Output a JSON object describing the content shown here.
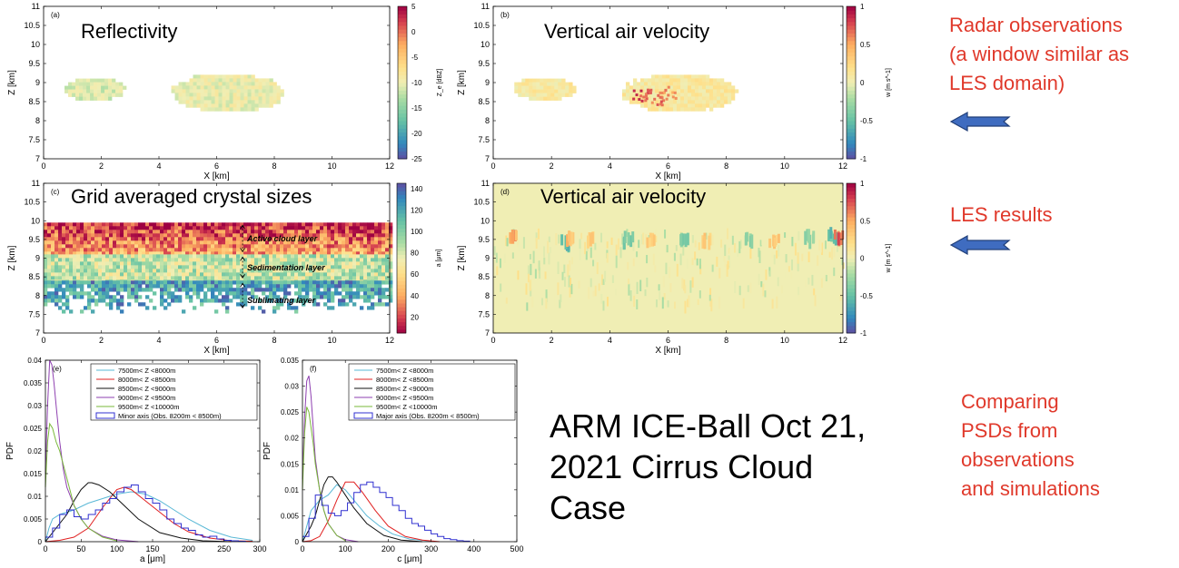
{
  "side_notes": {
    "radar": [
      "Radar observations",
      "(a window similar as",
      "LES domain)"
    ],
    "les": [
      "LES results"
    ],
    "psd": [
      "Comparing",
      "PSDs from",
      "observations",
      "and simulations"
    ]
  },
  "case_title": [
    "ARM ICE-Ball Oct 21,",
    "2021 Cirrus Cloud",
    "Case"
  ],
  "colors": {
    "note_red": "#e0392b",
    "arrow_blue": "#3f6cc0",
    "arrow_edge": "#213f78"
  },
  "icons": [
    "left-arrow-icon"
  ],
  "chart_data": [
    {
      "id": "a",
      "type": "heatmap",
      "panel_label": "(a)",
      "title": "Reflectivity",
      "xlabel": "X [km]",
      "ylabel": "Z [km]",
      "xlim": [
        0,
        12
      ],
      "ylim": [
        7,
        11
      ],
      "xticks": [
        0,
        2,
        4,
        6,
        8,
        10,
        12
      ],
      "yticks": [
        7,
        7.5,
        8,
        8.5,
        9,
        9.5,
        10,
        10.5,
        11
      ],
      "colorbar": {
        "label": "Z_e [dBZ]",
        "range": [
          -25,
          5
        ],
        "ticks": [
          -25,
          -20,
          -15,
          -10,
          -5,
          0,
          5
        ],
        "palette": "spectral"
      },
      "cloud_regions": [
        {
          "x_range": [
            0.6,
            2.8
          ],
          "z_range": [
            8.55,
            9.2
          ],
          "value": -11
        },
        {
          "x_range": [
            4.3,
            8.4
          ],
          "z_range": [
            8.25,
            9.3
          ],
          "value": -10
        }
      ]
    },
    {
      "id": "b",
      "type": "heatmap",
      "panel_label": "(b)",
      "title": "Vertical air velocity",
      "xlabel": "X [km]",
      "ylabel": "Z [km]",
      "xlim": [
        0,
        12
      ],
      "ylim": [
        7,
        11
      ],
      "xticks": [
        0,
        2,
        4,
        6,
        8,
        10,
        12
      ],
      "yticks": [
        7,
        7.5,
        8,
        8.5,
        9,
        9.5,
        10,
        10.5,
        11
      ],
      "colorbar": {
        "label": "w [m s^-1]",
        "range": [
          -1,
          1
        ],
        "ticks": [
          -1,
          -0.5,
          0,
          0.5,
          1
        ],
        "palette": "spectral"
      },
      "cloud_regions": [
        {
          "x_range": [
            0.6,
            2.8
          ],
          "z_range": [
            8.55,
            9.2
          ],
          "value": 0.1
        },
        {
          "x_range": [
            4.3,
            8.4
          ],
          "z_range": [
            8.25,
            9.3
          ],
          "value": 0.1
        }
      ],
      "hotspots": [
        {
          "x": 5.1,
          "z": 8.7,
          "value": 0.9
        },
        {
          "x": 5.5,
          "z": 8.6,
          "value": 0.8
        },
        {
          "x": 5.9,
          "z": 8.75,
          "value": 0.7
        }
      ]
    },
    {
      "id": "c",
      "type": "heatmap",
      "panel_label": "(c)",
      "title": "Grid averaged crystal sizes",
      "xlabel": "X [km]",
      "ylabel": "Z [km]",
      "xlim": [
        0,
        12
      ],
      "ylim": [
        7,
        11
      ],
      "xticks": [
        0,
        2,
        4,
        6,
        8,
        10,
        12
      ],
      "yticks": [
        7,
        7.5,
        8,
        8.5,
        9,
        9.5,
        10,
        10.5,
        11
      ],
      "colorbar": {
        "label": "a [μm]",
        "range": [
          5,
          145
        ],
        "ticks": [
          20,
          40,
          60,
          80,
          100,
          120,
          140
        ],
        "palette": "spectral_reversed"
      },
      "layers": [
        {
          "label": "Active cloud layer",
          "z_range": [
            9.1,
            9.95
          ],
          "value": 15
        },
        {
          "label": "Sedimentation layer",
          "z_range": [
            8.4,
            9.1
          ],
          "value": 85
        },
        {
          "label": "Sublimating layer",
          "z_range": [
            7.6,
            8.4
          ],
          "value": 120
        }
      ],
      "layer_marker_x": 6.9
    },
    {
      "id": "d",
      "type": "heatmap",
      "panel_label": "(d)",
      "title": "Vertical air velocity",
      "xlabel": "X [km]",
      "ylabel": "Z [km]",
      "xlim": [
        0,
        12
      ],
      "ylim": [
        7,
        11
      ],
      "xticks": [
        0,
        2,
        4,
        6,
        8,
        10,
        12
      ],
      "yticks": [
        7,
        7.5,
        8,
        8.5,
        9,
        9.5,
        10,
        10.5,
        11
      ],
      "colorbar": {
        "label": "w [m s^-1]",
        "range": [
          -1,
          1
        ],
        "ticks": [
          -1,
          -0.5,
          0,
          0.5,
          1
        ],
        "palette": "spectral"
      },
      "features": [
        {
          "x": 0.6,
          "z": 9.55,
          "value": 0.6
        },
        {
          "x": 2.4,
          "z": 9.45,
          "value": -0.8
        },
        {
          "x": 2.6,
          "z": 9.55,
          "value": 0.5
        },
        {
          "x": 3.3,
          "z": 9.5,
          "value": 0.4
        },
        {
          "x": 4.6,
          "z": 9.5,
          "value": -0.5
        },
        {
          "x": 5.4,
          "z": 9.5,
          "value": 0.4
        },
        {
          "x": 6.5,
          "z": 9.5,
          "value": -0.5
        },
        {
          "x": 7.3,
          "z": 9.45,
          "value": 0.4
        },
        {
          "x": 8.7,
          "z": 9.5,
          "value": -0.4
        },
        {
          "x": 9.6,
          "z": 9.45,
          "value": 0.4
        },
        {
          "x": 10.8,
          "z": 9.55,
          "value": -0.4
        },
        {
          "x": 11.6,
          "z": 9.6,
          "value": -0.6
        },
        {
          "x": 11.8,
          "z": 9.6,
          "value": 0.9
        }
      ]
    },
    {
      "id": "e",
      "type": "line",
      "panel_label": "(e)",
      "xlabel": "a [μm]",
      "ylabel": "PDF",
      "xlim": [
        0,
        300
      ],
      "ylim": [
        0,
        0.04
      ],
      "xticks": [
        0,
        50,
        100,
        150,
        200,
        250,
        300
      ],
      "yticks": [
        0,
        0.005,
        0.01,
        0.015,
        0.02,
        0.025,
        0.03,
        0.035,
        0.04
      ],
      "legend_position": "top-right",
      "series": [
        {
          "name": "7500m< Z <8000m",
          "color": "#5ab8d6",
          "x": [
            0,
            5,
            10,
            20,
            30,
            40,
            60,
            80,
            100,
            120,
            140,
            160,
            180,
            200,
            230,
            260,
            290
          ],
          "y": [
            0,
            0.003,
            0.005,
            0.006,
            0.0065,
            0.007,
            0.0085,
            0.0095,
            0.0105,
            0.011,
            0.0105,
            0.009,
            0.007,
            0.005,
            0.0025,
            0.001,
            0.0003
          ]
        },
        {
          "name": "8000m< Z <8500m",
          "color": "#e02020",
          "x": [
            0,
            20,
            40,
            60,
            80,
            100,
            110,
            120,
            140,
            160,
            180,
            200,
            230,
            260,
            290
          ],
          "y": [
            0,
            0.0003,
            0.001,
            0.003,
            0.0075,
            0.0115,
            0.012,
            0.0115,
            0.009,
            0.0065,
            0.004,
            0.0022,
            0.0008,
            0.0002,
            0.0001
          ]
        },
        {
          "name": "8500m< Z <9000m",
          "color": "#111111",
          "x": [
            0,
            5,
            10,
            20,
            30,
            40,
            50,
            60,
            65,
            75,
            90,
            110,
            130,
            160,
            190,
            220,
            260
          ],
          "y": [
            0,
            0.001,
            0.002,
            0.004,
            0.006,
            0.009,
            0.0115,
            0.013,
            0.013,
            0.0125,
            0.011,
            0.008,
            0.005,
            0.002,
            0.0008,
            0.0002,
            0
          ]
        },
        {
          "name": "9000m< Z <9500m",
          "color": "#8e3fb0",
          "x": [
            0,
            3,
            6,
            9,
            12,
            15,
            20,
            25,
            30,
            40,
            50,
            60,
            80,
            100,
            130
          ],
          "y": [
            0.015,
            0.03,
            0.04,
            0.039,
            0.035,
            0.03,
            0.022,
            0.016,
            0.012,
            0.008,
            0.005,
            0.003,
            0.0012,
            0.0004,
            0
          ]
        },
        {
          "name": "9500m< Z <10000m",
          "color": "#7ab83a",
          "x": [
            0,
            3,
            6,
            10,
            15,
            20,
            25,
            30,
            35,
            40,
            50,
            60,
            80,
            100
          ],
          "y": [
            0.012,
            0.022,
            0.026,
            0.025,
            0.022,
            0.02,
            0.017,
            0.014,
            0.011,
            0.008,
            0.005,
            0.003,
            0.001,
            0.0002
          ]
        },
        {
          "name": "Minor axis (Obs. 8200m < 8500m)",
          "color": "#3030d0",
          "step": true,
          "x": [
            0,
            10,
            20,
            30,
            40,
            50,
            60,
            70,
            80,
            90,
            100,
            110,
            120,
            130,
            140,
            150,
            160,
            170,
            180,
            190,
            200,
            210,
            220,
            230,
            240,
            250,
            260,
            270,
            280
          ],
          "y": [
            0.001,
            0.003,
            0.006,
            0.007,
            0.0055,
            0.005,
            0.006,
            0.007,
            0.0085,
            0.0095,
            0.011,
            0.012,
            0.0125,
            0.011,
            0.0095,
            0.0085,
            0.007,
            0.005,
            0.004,
            0.003,
            0.0025,
            0.0015,
            0.001,
            0.0012,
            0.0006,
            0.0003,
            0.0002,
            0.0001,
            0
          ]
        }
      ]
    },
    {
      "id": "f",
      "type": "line",
      "panel_label": "(f)",
      "xlabel": "c [μm]",
      "ylabel": "PDF",
      "xlim": [
        0,
        500
      ],
      "ylim": [
        0,
        0.035
      ],
      "xticks": [
        0,
        100,
        200,
        300,
        400,
        500
      ],
      "yticks": [
        0,
        0.005,
        0.01,
        0.015,
        0.02,
        0.025,
        0.03,
        0.035
      ],
      "legend_position": "top-right",
      "series": [
        {
          "name": "7500m< Z <8000m",
          "color": "#5ab8d6",
          "x": [
            0,
            10,
            20,
            30,
            40,
            60,
            80,
            100,
            120,
            150,
            180,
            210,
            250,
            300
          ],
          "y": [
            0,
            0.003,
            0.006,
            0.007,
            0.008,
            0.009,
            0.011,
            0.01,
            0.008,
            0.005,
            0.003,
            0.0015,
            0.0005,
            0.0001
          ]
        },
        {
          "name": "8000m< Z <8500m",
          "color": "#e02020",
          "x": [
            0,
            20,
            40,
            60,
            80,
            100,
            120,
            140,
            170,
            200,
            240,
            280,
            320
          ],
          "y": [
            0,
            0.0002,
            0.001,
            0.004,
            0.008,
            0.0115,
            0.0115,
            0.0095,
            0.006,
            0.003,
            0.001,
            0.0003,
            0
          ]
        },
        {
          "name": "8500m< Z <9000m",
          "color": "#111111",
          "x": [
            0,
            10,
            20,
            30,
            40,
            50,
            60,
            70,
            80,
            100,
            120,
            150,
            190,
            230,
            280
          ],
          "y": [
            0,
            0.0015,
            0.003,
            0.005,
            0.008,
            0.011,
            0.0125,
            0.0125,
            0.0115,
            0.009,
            0.0065,
            0.0035,
            0.0012,
            0.0003,
            0
          ]
        },
        {
          "name": "9000m< Z <9500m",
          "color": "#8e3fb0",
          "x": [
            0,
            5,
            10,
            15,
            20,
            25,
            30,
            40,
            50,
            60,
            80,
            100,
            130
          ],
          "y": [
            0.012,
            0.024,
            0.031,
            0.032,
            0.028,
            0.022,
            0.016,
            0.01,
            0.006,
            0.0035,
            0.0012,
            0.0004,
            0
          ]
        },
        {
          "name": "9500m< Z <10000m",
          "color": "#7ab83a",
          "x": [
            0,
            5,
            10,
            15,
            20,
            25,
            30,
            40,
            50,
            60,
            80,
            100
          ],
          "y": [
            0.01,
            0.021,
            0.026,
            0.025,
            0.022,
            0.019,
            0.015,
            0.01,
            0.006,
            0.0035,
            0.0012,
            0.0002
          ]
        },
        {
          "name": "Major axis (Obs. 8200m < 8500m)",
          "color": "#3030d0",
          "step": true,
          "x": [
            0,
            15,
            30,
            45,
            60,
            75,
            90,
            105,
            120,
            135,
            150,
            165,
            180,
            195,
            210,
            225,
            240,
            255,
            270,
            285,
            300,
            315,
            330,
            345,
            360,
            375,
            390
          ],
          "y": [
            0.001,
            0.0045,
            0.009,
            0.007,
            0.0055,
            0.005,
            0.006,
            0.0075,
            0.0095,
            0.011,
            0.0115,
            0.0105,
            0.0095,
            0.0085,
            0.007,
            0.006,
            0.0045,
            0.0035,
            0.003,
            0.0022,
            0.0015,
            0.001,
            0.0006,
            0.0004,
            0.0002,
            0.0001,
            0
          ]
        }
      ]
    }
  ]
}
